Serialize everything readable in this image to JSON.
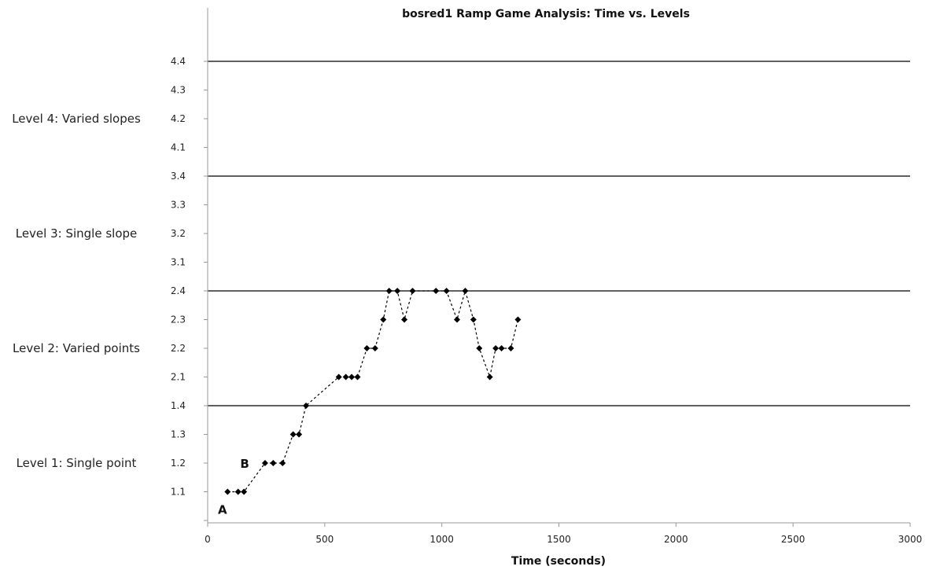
{
  "chart_data": {
    "type": "scatter",
    "title": "bosred1 Ramp Game Analysis: Time vs. Levels",
    "xlabel": "Time (seconds)",
    "ylabel": "",
    "xlim": [
      0,
      3000
    ],
    "x_ticks": [
      "0",
      "500",
      "1000",
      "1500",
      "2000",
      "2500",
      "3000"
    ],
    "y_tick_labels": [
      "1.1",
      "1.2",
      "1.3",
      "1.4",
      "2.1",
      "2.2",
      "2.3",
      "2.4",
      "3.1",
      "3.2",
      "3.3",
      "3.4",
      "4.1",
      "4.2",
      "4.3",
      "4.4"
    ],
    "level_boundaries": [
      "1.4",
      "2.4",
      "3.4",
      "4.4"
    ],
    "level_labels": [
      {
        "text": "Level 4: Varied slopes",
        "level": 4
      },
      {
        "text": "Level 3: Single slope",
        "level": 3
      },
      {
        "text": "Level 2: Varied points",
        "level": 2
      },
      {
        "text": "Level 1: Single point",
        "level": 1
      }
    ],
    "series": [
      {
        "x": [
          85,
          130,
          155,
          245,
          280,
          320,
          365,
          390,
          420,
          560,
          590,
          615,
          640,
          680,
          715,
          750,
          775,
          810,
          840,
          875,
          975,
          1020,
          1065,
          1100,
          1135,
          1160,
          1205,
          1230,
          1255,
          1295,
          1325
        ],
        "y": [
          "1.1",
          "1.1",
          "1.1",
          "1.2",
          "1.2",
          "1.2",
          "1.3",
          "1.3",
          "1.4",
          "2.1",
          "2.1",
          "2.1",
          "2.1",
          "2.2",
          "2.2",
          "2.3",
          "2.4",
          "2.4",
          "2.3",
          "2.4",
          "2.4",
          "2.4",
          "2.3",
          "2.4",
          "2.3",
          "2.2",
          "2.1",
          "2.2",
          "2.2",
          "2.2",
          "2.3"
        ]
      }
    ],
    "annotations": [
      {
        "text": "A",
        "x": 110,
        "y": "1.1"
      },
      {
        "text": "B",
        "x": 175,
        "y": "1.2"
      }
    ],
    "grid": false,
    "legend": "none",
    "colors": {
      "line": "#000000",
      "marker": "#000000",
      "text": "#111111"
    }
  }
}
